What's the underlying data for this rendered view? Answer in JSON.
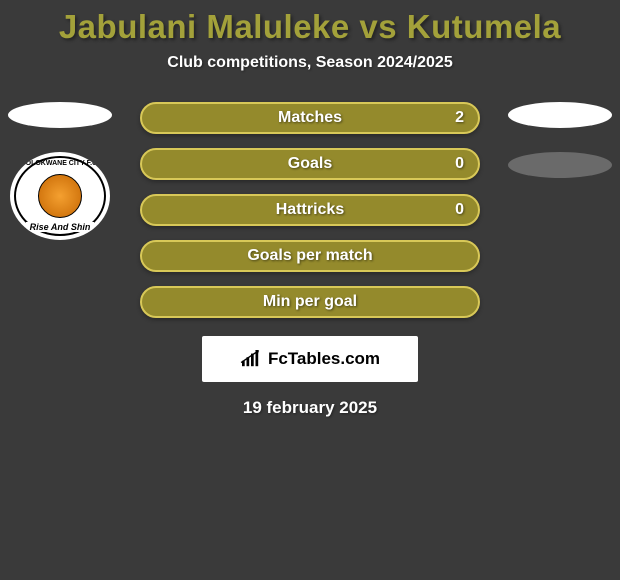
{
  "title": {
    "text": "Jabulani Maluleke vs Kutumela",
    "color": "#a3a13a",
    "fontsize": 33,
    "fontweight": 900
  },
  "subtitle": {
    "text": "Club competitions, Season 2024/2025",
    "fontsize": 16,
    "color": "#ffffff"
  },
  "background_color": "#3a3a3a",
  "player_left": {
    "ellipse_color": "#ffffff",
    "club_crest": {
      "top_text": "POLOKWANE CITY F.C.",
      "banner_text": "Rise And Shin"
    }
  },
  "player_right": {
    "ellipse_color_1": "#ffffff",
    "ellipse_color_2": "#6a6a6a"
  },
  "bars": {
    "fill_color": "#948a2c",
    "border_color": "#d8c858",
    "label_color": "#ffffff",
    "height": 32,
    "radius": 16,
    "items": [
      {
        "label": "Matches",
        "value_right": "2",
        "value_left": ""
      },
      {
        "label": "Goals",
        "value_right": "0",
        "value_left": ""
      },
      {
        "label": "Hattricks",
        "value_right": "0",
        "value_left": ""
      },
      {
        "label": "Goals per match",
        "value_right": "",
        "value_left": ""
      },
      {
        "label": "Min per goal",
        "value_right": "",
        "value_left": ""
      }
    ]
  },
  "watermark": {
    "text": "FcTables.com",
    "background": "#ffffff",
    "text_color": "#000000"
  },
  "date": {
    "text": "19 february 2025",
    "color": "#ffffff",
    "fontsize": 17
  }
}
